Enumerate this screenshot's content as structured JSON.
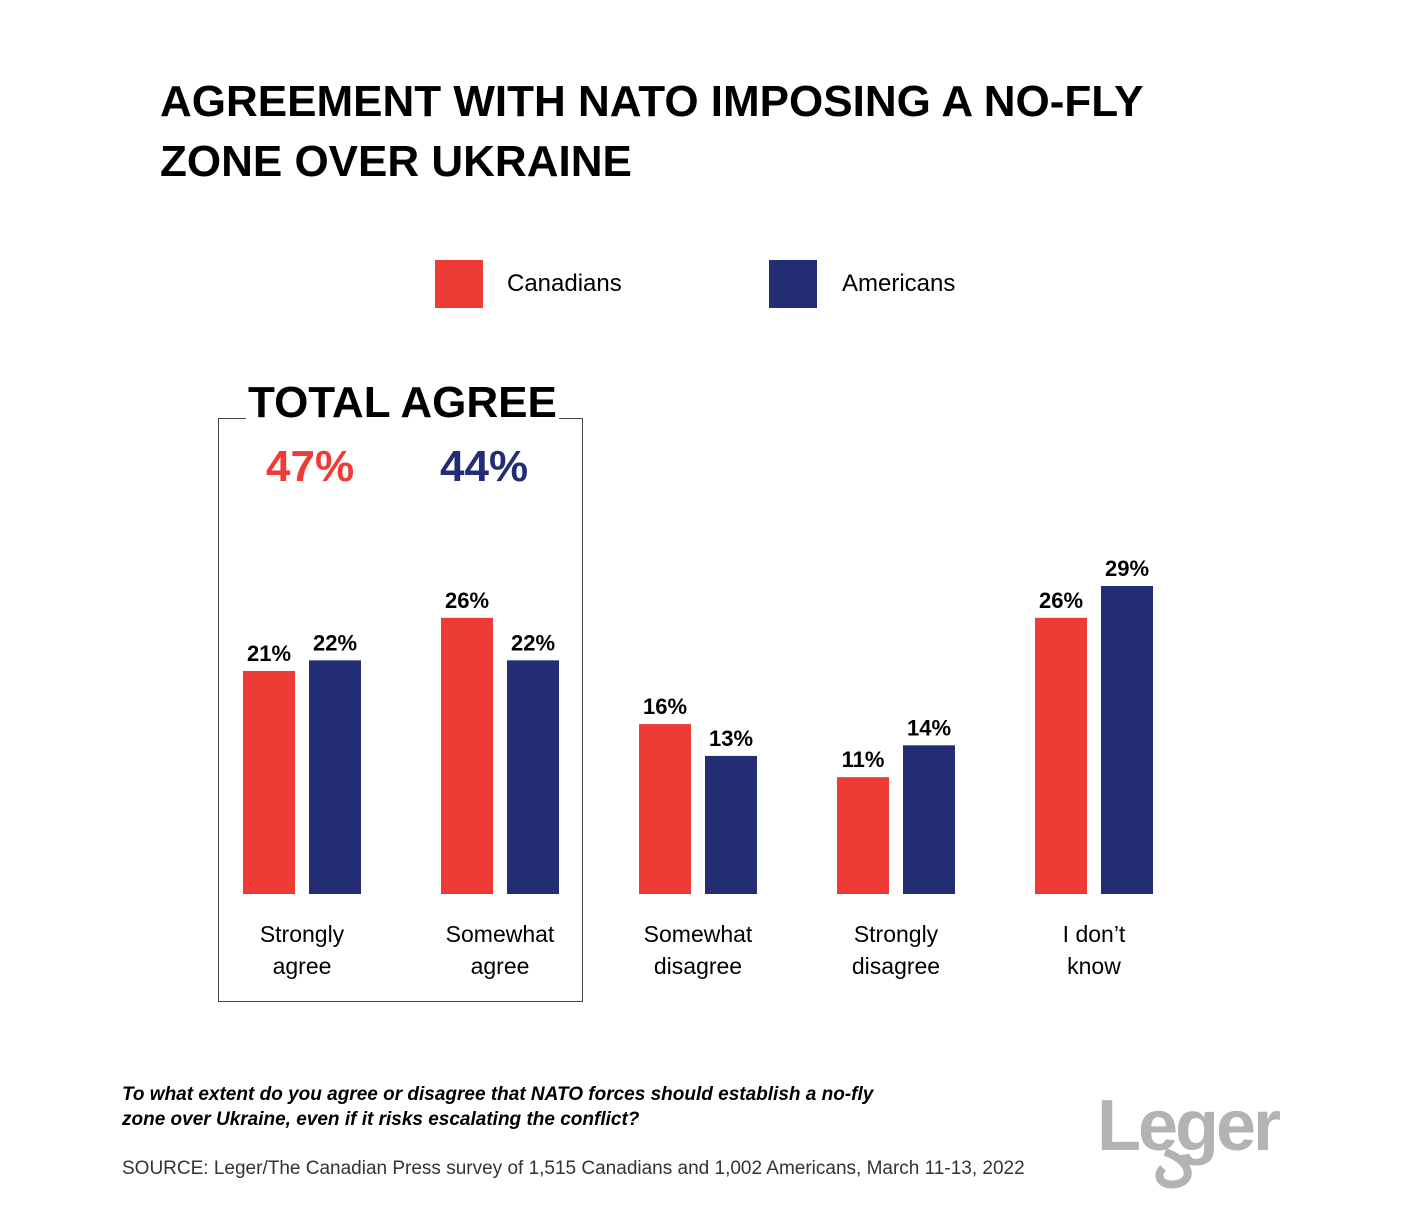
{
  "title": "AGREEMENT WITH NATO IMPOSING A NO-FLY ZONE OVER UKRAINE",
  "legend": [
    {
      "label": "Canadians",
      "color": "#ef3b36"
    },
    {
      "label": "Americans",
      "color": "#232d74"
    }
  ],
  "total_agree": {
    "label": "TOTAL AGREE",
    "canadians": "47%",
    "americans": "44%"
  },
  "question": "To what extent do you agree or disagree that NATO forces should establish a no-fly zone over Ukraine, even if it risks escalating the conflict?",
  "source": "SOURCE: Leger/The Canadian Press survey of 1,515 Canadians and 1,002 Americans, March 11-13, 2022",
  "logo": "Leger",
  "chart_data": {
    "type": "bar",
    "categories": [
      [
        "Strongly",
        "agree"
      ],
      [
        "Somewhat",
        "agree"
      ],
      [
        "Somewhat",
        "disagree"
      ],
      [
        "Strongly",
        "disagree"
      ],
      [
        "I don’t",
        "know"
      ]
    ],
    "series": [
      {
        "name": "Canadians",
        "color": "#ef3b36",
        "values": [
          21,
          26,
          16,
          11,
          26
        ]
      },
      {
        "name": "Americans",
        "color": "#232d74",
        "values": [
          22,
          22,
          13,
          14,
          29
        ]
      }
    ],
    "value_suffix": "%",
    "ylim": [
      0,
      29
    ],
    "grid": false,
    "legend_position": "top-center"
  }
}
